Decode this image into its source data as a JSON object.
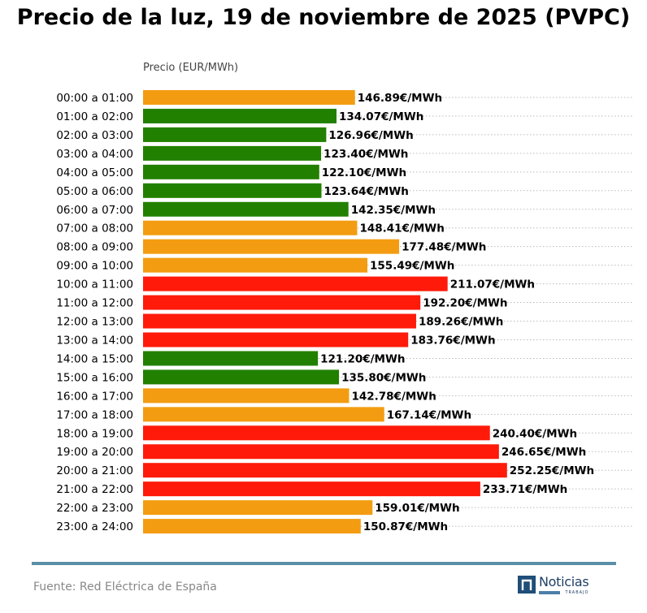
{
  "title": "Precio de la luz, 19 de noviembre de 2025 (PVPC)",
  "footer": {
    "source": "Fuente: Red Eléctrica de España",
    "logo_name": "Noticias",
    "logo_sub": "TRABAJO"
  },
  "colors": {
    "low": "#228000",
    "mid": "#f39c12",
    "high": "#ff1a0a"
  },
  "chart_data": {
    "type": "bar",
    "orientation": "horizontal",
    "title": "Precio de la luz, 19 de noviembre de 2025 (PVPC)",
    "xlabel": "Precio (EUR/MWh)",
    "ylabel": "",
    "xlim": [
      0,
      260
    ],
    "grid": "dotted horizontal",
    "categories": [
      "00:00 a 01:00",
      "01:00 a 02:00",
      "02:00 a 03:00",
      "03:00 a 04:00",
      "04:00 a 05:00",
      "05:00 a 06:00",
      "06:00 a 07:00",
      "07:00 a 08:00",
      "08:00 a 09:00",
      "09:00 a 10:00",
      "10:00 a 11:00",
      "11:00 a 12:00",
      "12:00 a 13:00",
      "13:00 a 14:00",
      "14:00 a 15:00",
      "15:00 a 16:00",
      "16:00 a 17:00",
      "17:00 a 18:00",
      "18:00 a 19:00",
      "19:00 a 20:00",
      "20:00 a 21:00",
      "21:00 a 22:00",
      "22:00 a 23:00",
      "23:00 a 24:00"
    ],
    "values": [
      146.89,
      134.07,
      126.96,
      123.4,
      122.1,
      123.64,
      142.35,
      148.41,
      177.48,
      155.49,
      211.07,
      192.2,
      189.26,
      183.76,
      121.2,
      135.8,
      142.78,
      167.14,
      240.4,
      246.65,
      252.25,
      233.71,
      159.01,
      150.87
    ],
    "value_labels": [
      "146.89€/MWh",
      "134.07€/MWh",
      "126.96€/MWh",
      "123.40€/MWh",
      "122.10€/MWh",
      "123.64€/MWh",
      "142.35€/MWh",
      "148.41€/MWh",
      "177.48€/MWh",
      "155.49€/MWh",
      "211.07€/MWh",
      "192.20€/MWh",
      "189.26€/MWh",
      "183.76€/MWh",
      "121.20€/MWh",
      "135.80€/MWh",
      "142.78€/MWh",
      "167.14€/MWh",
      "240.40€/MWh",
      "246.65€/MWh",
      "252.25€/MWh",
      "233.71€/MWh",
      "159.01€/MWh",
      "150.87€/MWh"
    ],
    "levels": [
      "mid",
      "low",
      "low",
      "low",
      "low",
      "low",
      "low",
      "mid",
      "mid",
      "mid",
      "high",
      "high",
      "high",
      "high",
      "low",
      "low",
      "mid",
      "mid",
      "high",
      "high",
      "high",
      "high",
      "mid",
      "mid"
    ]
  }
}
